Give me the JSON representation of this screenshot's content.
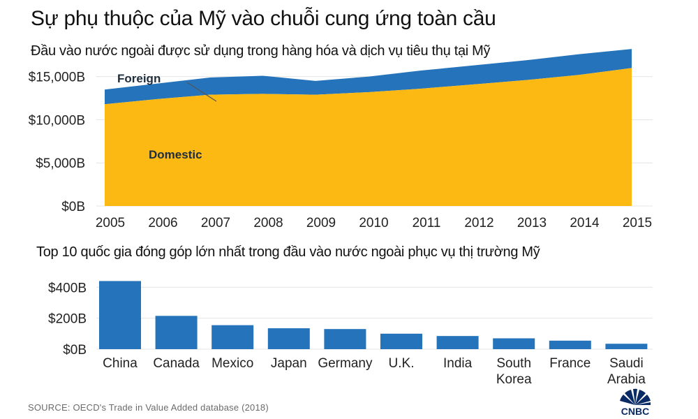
{
  "header": {
    "title": "Sự phụ thuộc của Mỹ vào chuỗi cung ứng toàn cầu",
    "subtitle": "Đầu vào nước ngoài được sử dụng trong hàng hóa và dịch vụ tiêu thụ tại Mỹ",
    "subtitle2": "Top 10 quốc gia đóng góp lớn nhất trong đầu vào nước ngoài phục vụ thị trường Mỹ"
  },
  "footer": {
    "source": "SOURCE: OECD's Trade in Value Added database (2018)",
    "logo": "CNBC"
  },
  "colors": {
    "domestic": "#FDB913",
    "foreign": "#2574BB",
    "bar": "#2574BB",
    "grid": "#e4e4e4"
  },
  "chart_data": [
    {
      "type": "area",
      "stacked": true,
      "x": [
        2005,
        2006,
        2007,
        2008,
        2009,
        2010,
        2011,
        2012,
        2013,
        2014,
        2015
      ],
      "series": [
        {
          "name": "Domestic",
          "values": [
            11800,
            12400,
            12900,
            13000,
            12900,
            13200,
            13600,
            14100,
            14600,
            15200,
            16000
          ]
        },
        {
          "name": "Foreign",
          "values": [
            1700,
            1800,
            2000,
            2100,
            1600,
            1800,
            2100,
            2200,
            2300,
            2400,
            2200
          ]
        }
      ],
      "ylim": [
        0,
        17000
      ],
      "yticks": [
        0,
        5000,
        10000,
        15000
      ],
      "ytick_labels": [
        "$0B",
        "$5,000B",
        "$10,000B",
        "$15,000B"
      ],
      "labels": {
        "foreign": "Foreign",
        "domestic": "Domestic"
      },
      "xlabel": "",
      "ylabel": "",
      "grid": true
    },
    {
      "type": "bar",
      "categories": [
        [
          "China"
        ],
        [
          "Canada"
        ],
        [
          "Mexico"
        ],
        [
          "Japan"
        ],
        [
          "Germany"
        ],
        [
          "U.K."
        ],
        [
          "India"
        ],
        [
          "South",
          "Korea"
        ],
        [
          "France"
        ],
        [
          "Saudi",
          "Arabia"
        ]
      ],
      "values": [
        440,
        215,
        155,
        135,
        130,
        100,
        85,
        70,
        55,
        35
      ],
      "ylim": [
        0,
        460
      ],
      "yticks": [
        0,
        200,
        400
      ],
      "ytick_labels": [
        "$0B",
        "$200B",
        "$400B"
      ],
      "xlabel": "",
      "ylabel": "",
      "grid": true
    }
  ]
}
